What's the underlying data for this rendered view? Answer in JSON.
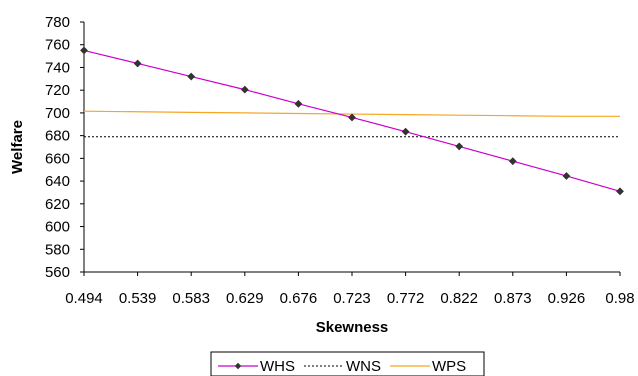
{
  "chart_data": {
    "type": "line",
    "title": "",
    "xlabel": "Skewness",
    "ylabel": "Welfare",
    "categories": [
      "0.494",
      "0.539",
      "0.583",
      "0.629",
      "0.676",
      "0.723",
      "0.772",
      "0.822",
      "0.873",
      "0.926",
      "0.98"
    ],
    "ylim": [
      560,
      780
    ],
    "yticks": [
      560,
      580,
      600,
      620,
      640,
      660,
      680,
      700,
      720,
      740,
      760,
      780
    ],
    "grid": false,
    "legend_position": "bottom",
    "series": [
      {
        "name": "WHS",
        "color": "#cc00cc",
        "line_style": "solid",
        "marker": "diamond",
        "marker_color": "#333333",
        "values": [
          755,
          743.5,
          732,
          720.5,
          708,
          696,
          683.5,
          670.5,
          657.5,
          644.5,
          631
        ]
      },
      {
        "name": "WNS",
        "color": "#000000",
        "line_style": "dotted",
        "marker": "none",
        "values": [
          679,
          679,
          679,
          679,
          679,
          679,
          679,
          679,
          679,
          679,
          679
        ]
      },
      {
        "name": "WPS",
        "color": "#f5a623",
        "line_style": "solid",
        "marker": "none",
        "values": [
          701.5,
          701,
          700.5,
          700,
          699.5,
          699,
          698.5,
          698,
          697.5,
          697,
          697
        ]
      }
    ]
  }
}
